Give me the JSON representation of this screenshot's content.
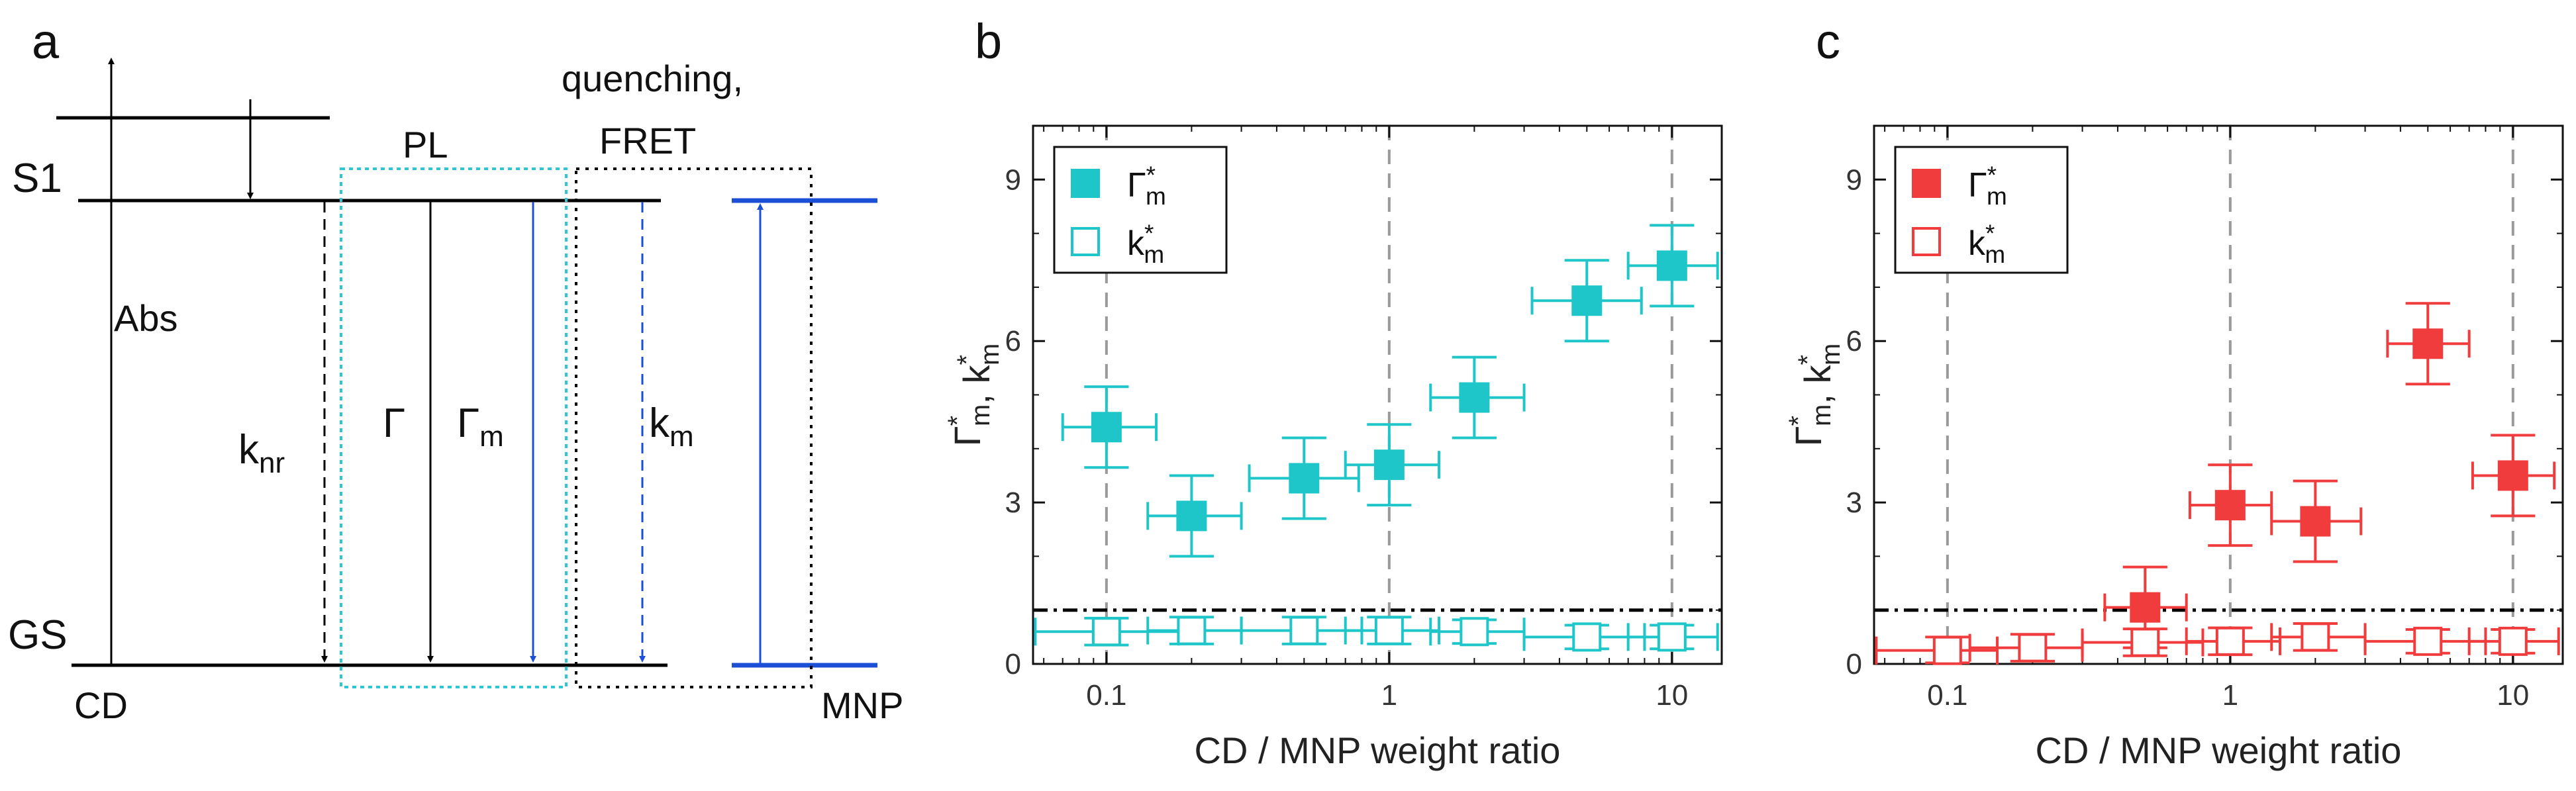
{
  "panel_a": {
    "letter": "a",
    "levels": {
      "s1": "S1",
      "gs": "GS",
      "cd": "CD",
      "mnp": "MNP"
    },
    "labels": {
      "abs": "Abs",
      "pl": "PL",
      "quenching": "quenching,",
      "fret": "FRET",
      "knr_main": "k",
      "knr_sub": "nr",
      "gamma": "Γ",
      "gamma_m_main": "Γ",
      "gamma_m_sub": "m",
      "km_main": "k",
      "km_sub": "m"
    },
    "colors": {
      "black": "#000000",
      "blue": "#1a4fd6",
      "cyan_box": "#2cc6d6"
    }
  },
  "chart_data": [
    {
      "panel": "b",
      "type": "scatter",
      "color": "#1fc6c9",
      "xscale": "log",
      "xlim": [
        0.055,
        15
      ],
      "ylim": [
        0,
        10
      ],
      "xticks": [
        "0.1",
        "1",
        "10"
      ],
      "yticks": [
        "0",
        "3",
        "6",
        "9"
      ],
      "xlabel": "CD / MNP weight ratio",
      "ylabel": {
        "a": "Γ",
        "a_sup": "*",
        "a_sub": "m",
        "sep": ", ",
        "b": "k",
        "b_sup": "*",
        "b_sub": "m"
      },
      "legend": [
        {
          "main": "Γ",
          "sup": "*",
          "sub": "m",
          "filled": true
        },
        {
          "main": "k",
          "sup": "*",
          "sub": "m",
          "filled": false
        }
      ],
      "reference_line_y": 1,
      "vertical_guides_x": [
        0.1,
        1,
        10
      ],
      "series": [
        {
          "name": "Γ*m",
          "filled": true,
          "points": [
            {
              "x": 0.1,
              "y": 4.4,
              "xerr": [
                0.07,
                0.15
              ],
              "yerr": 0.75
            },
            {
              "x": 0.2,
              "y": 2.75,
              "xerr": [
                0.14,
                0.3
              ],
              "yerr": 0.75
            },
            {
              "x": 0.5,
              "y": 3.45,
              "xerr": [
                0.32,
                0.78
              ],
              "yerr": 0.75
            },
            {
              "x": 1.0,
              "y": 3.7,
              "xerr": [
                0.7,
                1.5
              ],
              "yerr": 0.75
            },
            {
              "x": 2.0,
              "y": 4.95,
              "xerr": [
                1.4,
                3.0
              ],
              "yerr": 0.75
            },
            {
              "x": 5.0,
              "y": 6.75,
              "xerr": [
                3.2,
                7.8
              ],
              "yerr": 0.75
            },
            {
              "x": 10.0,
              "y": 7.4,
              "xerr": [
                7.0,
                14.5
              ],
              "yerr": 0.75
            }
          ]
        },
        {
          "name": "k*m",
          "filled": false,
          "points": [
            {
              "x": 0.1,
              "y": 0.6,
              "xerr": [
                0.056,
                0.18
              ],
              "yerr": 0.25
            },
            {
              "x": 0.2,
              "y": 0.62,
              "xerr": [
                0.14,
                0.3
              ],
              "yerr": 0.25
            },
            {
              "x": 0.5,
              "y": 0.62,
              "xerr": [
                0.3,
                0.8
              ],
              "yerr": 0.25
            },
            {
              "x": 1.0,
              "y": 0.62,
              "xerr": [
                0.7,
                1.5
              ],
              "yerr": 0.25
            },
            {
              "x": 2.0,
              "y": 0.6,
              "xerr": [
                1.4,
                3.0
              ],
              "yerr": 0.22
            },
            {
              "x": 5.0,
              "y": 0.5,
              "xerr": [
                3.0,
                8.0
              ],
              "yerr": 0.22
            },
            {
              "x": 10.0,
              "y": 0.5,
              "xerr": [
                7.0,
                14.5
              ],
              "yerr": 0.22
            }
          ]
        }
      ]
    },
    {
      "panel": "c",
      "type": "scatter",
      "color": "#f03c3c",
      "xscale": "log",
      "xlim": [
        0.055,
        15
      ],
      "ylim": [
        0,
        10
      ],
      "xticks": [
        "0.1",
        "1",
        "10"
      ],
      "yticks": [
        "0",
        "3",
        "6",
        "9"
      ],
      "xlabel": "CD / MNP weight ratio",
      "ylabel": {
        "a": "Γ",
        "a_sup": "*",
        "a_sub": "m",
        "sep": ", ",
        "b": "k",
        "b_sup": "*",
        "b_sub": "m"
      },
      "legend": [
        {
          "main": "Γ",
          "sup": "*",
          "sub": "m",
          "filled": true
        },
        {
          "main": "k",
          "sup": "*",
          "sub": "m",
          "filled": false
        }
      ],
      "reference_line_y": 1,
      "vertical_guides_x": [
        0.1,
        1,
        10
      ],
      "series": [
        {
          "name": "Γ*m",
          "filled": true,
          "points": [
            {
              "x": 0.5,
              "y": 1.05,
              "xerr": [
                0.36,
                0.7
              ],
              "yerr": 0.75
            },
            {
              "x": 1.0,
              "y": 2.95,
              "xerr": [
                0.72,
                1.4
              ],
              "yerr": 0.75
            },
            {
              "x": 2.0,
              "y": 2.65,
              "xerr": [
                1.4,
                2.9
              ],
              "yerr": 0.75
            },
            {
              "x": 5.0,
              "y": 5.95,
              "xerr": [
                3.6,
                7.0
              ],
              "yerr": 0.75
            },
            {
              "x": 10.0,
              "y": 3.5,
              "xerr": [
                7.2,
                14.0
              ],
              "yerr": 0.75
            }
          ]
        },
        {
          "name": "k*m",
          "filled": false,
          "points": [
            {
              "x": 0.1,
              "y": 0.25,
              "xerr": [
                0.056,
                0.15
              ],
              "yerr": 0.25
            },
            {
              "x": 0.2,
              "y": 0.3,
              "xerr": [
                0.12,
                0.3
              ],
              "yerr": 0.25
            },
            {
              "x": 0.5,
              "y": 0.4,
              "xerr": [
                0.3,
                0.8
              ],
              "yerr": 0.25
            },
            {
              "x": 1.0,
              "y": 0.42,
              "xerr": [
                0.7,
                1.5
              ],
              "yerr": 0.25
            },
            {
              "x": 2.0,
              "y": 0.5,
              "xerr": [
                1.4,
                3.0
              ],
              "yerr": 0.25
            },
            {
              "x": 5.0,
              "y": 0.42,
              "xerr": [
                3.0,
                8.0
              ],
              "yerr": 0.22
            },
            {
              "x": 10.0,
              "y": 0.42,
              "xerr": [
                7.0,
                14.5
              ],
              "yerr": 0.22
            }
          ]
        }
      ]
    }
  ],
  "panel_letters": {
    "b": "b",
    "c": "c"
  }
}
